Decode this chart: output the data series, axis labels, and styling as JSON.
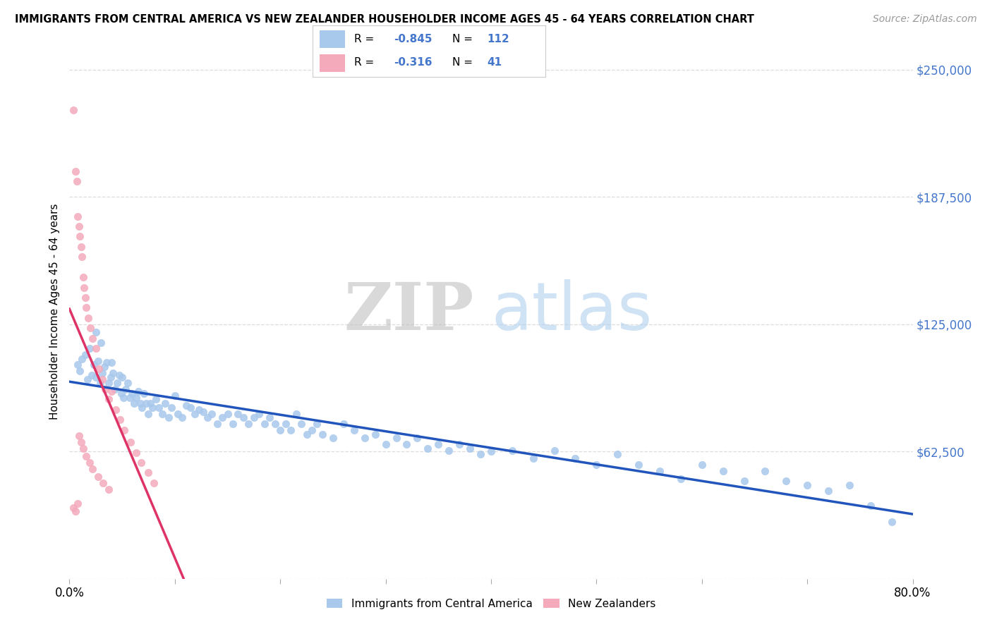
{
  "title": "IMMIGRANTS FROM CENTRAL AMERICA VS NEW ZEALANDER HOUSEHOLDER INCOME AGES 45 - 64 YEARS CORRELATION CHART",
  "source": "Source: ZipAtlas.com",
  "ylabel": "Householder Income Ages 45 - 64 years",
  "xlim": [
    0.0,
    0.8
  ],
  "ylim": [
    0,
    262500
  ],
  "yticks": [
    0,
    62500,
    125000,
    187500,
    250000
  ],
  "ytick_labels": [
    "",
    "$62,500",
    "$125,000",
    "$187,500",
    "$250,000"
  ],
  "xticks": [
    0.0,
    0.1,
    0.2,
    0.3,
    0.4,
    0.5,
    0.6,
    0.7,
    0.8
  ],
  "xtick_labels": [
    "0.0%",
    "",
    "",
    "",
    "",
    "",
    "",
    "",
    "80.0%"
  ],
  "blue_color": "#A8C8EC",
  "pink_color": "#F4AABB",
  "blue_line_color": "#2255BB",
  "pink_line_color": "#DD3366",
  "trendline_extend_color": "#CCCCCC",
  "R_blue": -0.845,
  "N_blue": 112,
  "R_pink": -0.316,
  "N_pink": 41,
  "watermark_zip": "ZIP",
  "watermark_atlas": "atlas",
  "background_color": "#FFFFFF",
  "grid_color": "#DDDDDD",
  "legend_label_blue": "Immigrants from Central America",
  "legend_label_pink": "New Zealanders",
  "blue_scatter_x": [
    0.008,
    0.01,
    0.012,
    0.015,
    0.017,
    0.019,
    0.021,
    0.023,
    0.025,
    0.027,
    0.029,
    0.031,
    0.033,
    0.035,
    0.037,
    0.039,
    0.041,
    0.043,
    0.045,
    0.047,
    0.049,
    0.051,
    0.053,
    0.055,
    0.057,
    0.059,
    0.061,
    0.063,
    0.065,
    0.067,
    0.069,
    0.071,
    0.073,
    0.075,
    0.077,
    0.079,
    0.082,
    0.085,
    0.088,
    0.091,
    0.094,
    0.097,
    0.1,
    0.103,
    0.107,
    0.111,
    0.115,
    0.119,
    0.123,
    0.127,
    0.131,
    0.135,
    0.14,
    0.145,
    0.15,
    0.155,
    0.16,
    0.165,
    0.17,
    0.175,
    0.18,
    0.185,
    0.19,
    0.195,
    0.2,
    0.205,
    0.21,
    0.215,
    0.22,
    0.225,
    0.23,
    0.235,
    0.24,
    0.25,
    0.26,
    0.27,
    0.28,
    0.29,
    0.3,
    0.31,
    0.32,
    0.33,
    0.34,
    0.35,
    0.36,
    0.37,
    0.38,
    0.39,
    0.4,
    0.42,
    0.44,
    0.46,
    0.48,
    0.5,
    0.52,
    0.54,
    0.56,
    0.58,
    0.6,
    0.62,
    0.64,
    0.66,
    0.68,
    0.7,
    0.72,
    0.74,
    0.76,
    0.78,
    0.025,
    0.03,
    0.04,
    0.05
  ],
  "blue_scatter_y": [
    105000,
    102000,
    108000,
    110000,
    98000,
    113000,
    100000,
    105000,
    99000,
    107000,
    96000,
    101000,
    104000,
    106000,
    96000,
    99000,
    101000,
    93000,
    96000,
    100000,
    91000,
    89000,
    93000,
    96000,
    89000,
    91000,
    86000,
    89000,
    92000,
    86000,
    84000,
    91000,
    86000,
    81000,
    86000,
    84000,
    88000,
    84000,
    81000,
    86000,
    79000,
    84000,
    90000,
    81000,
    79000,
    85000,
    84000,
    81000,
    83000,
    82000,
    79000,
    81000,
    76000,
    79000,
    81000,
    76000,
    81000,
    79000,
    76000,
    79000,
    81000,
    76000,
    79000,
    76000,
    73000,
    76000,
    73000,
    81000,
    76000,
    71000,
    73000,
    76000,
    71000,
    69000,
    76000,
    73000,
    69000,
    71000,
    66000,
    69000,
    66000,
    69000,
    64000,
    66000,
    63000,
    66000,
    64000,
    61000,
    62500,
    63000,
    59000,
    63000,
    59000,
    56000,
    61000,
    56000,
    53000,
    49000,
    56000,
    53000,
    48000,
    53000,
    48000,
    46000,
    43000,
    46000,
    36000,
    28000,
    121000,
    116000,
    106000,
    99000
  ],
  "pink_scatter_x": [
    0.004,
    0.006,
    0.007,
    0.008,
    0.009,
    0.01,
    0.011,
    0.012,
    0.013,
    0.014,
    0.015,
    0.016,
    0.018,
    0.02,
    0.022,
    0.025,
    0.028,
    0.031,
    0.034,
    0.037,
    0.04,
    0.044,
    0.048,
    0.052,
    0.058,
    0.063,
    0.068,
    0.075,
    0.08,
    0.009,
    0.011,
    0.013,
    0.016,
    0.019,
    0.022,
    0.027,
    0.032,
    0.037,
    0.004,
    0.006,
    0.008
  ],
  "pink_scatter_y": [
    230000,
    200000,
    195000,
    178000,
    173000,
    168000,
    163000,
    158000,
    148000,
    143000,
    138000,
    133000,
    128000,
    123000,
    118000,
    113000,
    103000,
    98000,
    93000,
    88000,
    92000,
    83000,
    78000,
    73000,
    67000,
    62000,
    57000,
    52000,
    47000,
    70000,
    67000,
    64000,
    60000,
    57000,
    54000,
    50000,
    47000,
    44000,
    35000,
    33000,
    37000
  ]
}
